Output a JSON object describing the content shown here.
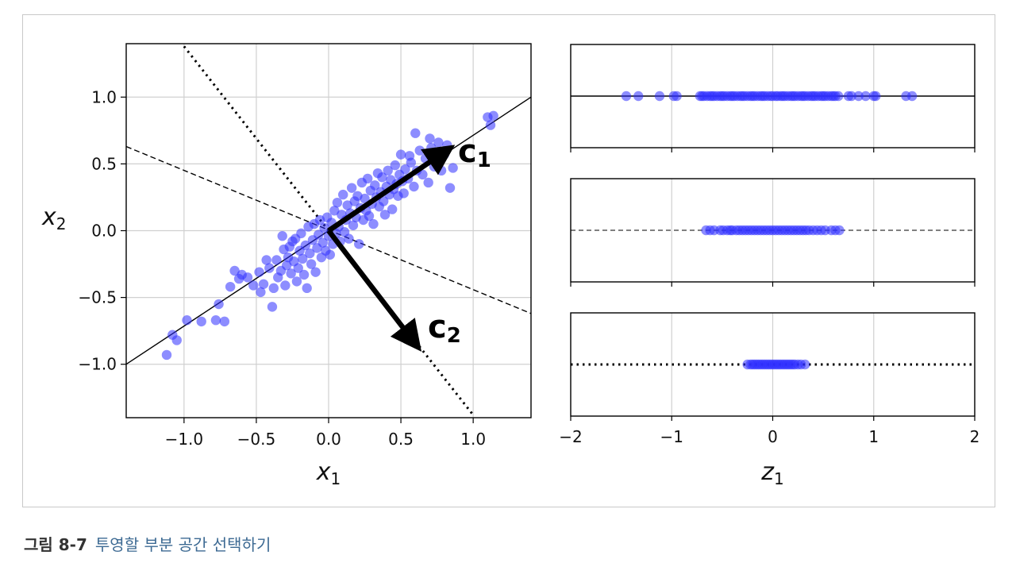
{
  "caption": {
    "number": "그림 8-7",
    "title": "투영할 부분 공간 선택하기"
  },
  "colors": {
    "points": "#2f2fff",
    "axes": "#000000",
    "grid": "#d0d0d0"
  },
  "chart_data": [
    {
      "type": "scatter",
      "xlabel": {
        "main": "x",
        "sub": "1"
      },
      "ylabel": {
        "main": "x",
        "sub": "2"
      },
      "xlim": [
        -1.4,
        1.4
      ],
      "ylim": [
        -1.4,
        1.4
      ],
      "xticks": [
        -1.0,
        -0.5,
        0.0,
        0.5,
        1.0
      ],
      "xtick_labels": [
        "−1.0",
        "−0.5",
        "0.0",
        "0.5",
        "1.0"
      ],
      "yticks": [
        -1.0,
        -0.5,
        0.0,
        0.5,
        1.0
      ],
      "ytick_labels": [
        "−1.0",
        "−0.5",
        "0.0",
        "0.5",
        "1.0"
      ],
      "grid": true,
      "lines": [
        {
          "style": "solid",
          "x": [
            -1.4,
            1.4
          ],
          "y": [
            -1.0,
            1.0
          ]
        },
        {
          "style": "dashed",
          "x": [
            -1.4,
            1.4
          ],
          "y": [
            0.63,
            -0.62
          ]
        },
        {
          "style": "dotted",
          "x": [
            -1.0,
            1.0
          ],
          "y": [
            1.38,
            -1.38
          ]
        }
      ],
      "vectors": [
        {
          "label": "c",
          "sub": "1",
          "from": [
            0,
            0
          ],
          "to": [
            0.83,
            0.61
          ]
        },
        {
          "label": "c",
          "sub": "2",
          "from": [
            0,
            0
          ],
          "to": [
            0.61,
            -0.86
          ]
        }
      ],
      "points": [
        [
          -1.12,
          -0.93
        ],
        [
          -1.08,
          -0.78
        ],
        [
          -1.05,
          -0.82
        ],
        [
          -0.98,
          -0.67
        ],
        [
          -0.88,
          -0.68
        ],
        [
          -0.78,
          -0.67
        ],
        [
          -0.76,
          -0.55
        ],
        [
          -0.72,
          -0.68
        ],
        [
          -0.68,
          -0.42
        ],
        [
          -0.65,
          -0.3
        ],
        [
          -0.62,
          -0.36
        ],
        [
          -0.6,
          -0.33
        ],
        [
          -0.56,
          -0.35
        ],
        [
          -0.52,
          -0.41
        ],
        [
          -0.48,
          -0.31
        ],
        [
          -0.47,
          -0.46
        ],
        [
          -0.45,
          -0.4
        ],
        [
          -0.43,
          -0.22
        ],
        [
          -0.41,
          -0.28
        ],
        [
          -0.39,
          -0.57
        ],
        [
          -0.38,
          -0.43
        ],
        [
          -0.36,
          -0.22
        ],
        [
          -0.35,
          -0.35
        ],
        [
          -0.33,
          -0.3
        ],
        [
          -0.32,
          -0.04
        ],
        [
          -0.31,
          -0.14
        ],
        [
          -0.3,
          -0.41
        ],
        [
          -0.29,
          -0.26
        ],
        [
          -0.28,
          -0.2
        ],
        [
          -0.27,
          -0.12
        ],
        [
          -0.26,
          -0.32
        ],
        [
          -0.25,
          -0.08
        ],
        [
          -0.24,
          -0.23
        ],
        [
          -0.23,
          -0.06
        ],
        [
          -0.22,
          -0.38
        ],
        [
          -0.21,
          -0.28
        ],
        [
          -0.2,
          -0.15
        ],
        [
          -0.19,
          -0.02
        ],
        [
          -0.18,
          -0.21
        ],
        [
          -0.17,
          -0.33
        ],
        [
          -0.16,
          -0.11
        ],
        [
          -0.15,
          -0.43
        ],
        [
          -0.14,
          0.03
        ],
        [
          -0.13,
          -0.17
        ],
        [
          -0.12,
          -0.25
        ],
        [
          -0.11,
          -0.07
        ],
        [
          -0.1,
          0.05
        ],
        [
          -0.09,
          -0.31
        ],
        [
          -0.08,
          -0.13
        ],
        [
          -0.07,
          -0.03
        ],
        [
          -0.06,
          0.08
        ],
        [
          -0.05,
          -0.2
        ],
        [
          -0.04,
          -0.09
        ],
        [
          -0.03,
          0.02
        ],
        [
          -0.02,
          -0.15
        ],
        [
          -0.01,
          0.1
        ],
        [
          0.0,
          -0.04
        ],
        [
          0.01,
          -0.18
        ],
        [
          0.02,
          0.06
        ],
        [
          0.03,
          -0.1
        ],
        [
          0.04,
          0.15
        ],
        [
          0.05,
          -0.02
        ],
        [
          0.06,
          0.21
        ],
        [
          0.07,
          0.03
        ],
        [
          0.08,
          -0.08
        ],
        [
          0.09,
          0.12
        ],
        [
          0.1,
          0.27
        ],
        [
          0.11,
          -0.01
        ],
        [
          0.12,
          0.08
        ],
        [
          0.13,
          0.19
        ],
        [
          0.14,
          -0.06
        ],
        [
          0.15,
          0.13
        ],
        [
          0.16,
          0.32
        ],
        [
          0.17,
          0.04
        ],
        [
          0.18,
          0.22
        ],
        [
          0.19,
          0.1
        ],
        [
          0.2,
          0.26
        ],
        [
          0.21,
          -0.1
        ],
        [
          0.22,
          0.17
        ],
        [
          0.23,
          0.36
        ],
        [
          0.24,
          0.08
        ],
        [
          0.25,
          0.24
        ],
        [
          0.26,
          0.15
        ],
        [
          0.27,
          0.39
        ],
        [
          0.28,
          0.11
        ],
        [
          0.29,
          0.3
        ],
        [
          0.3,
          0.2
        ],
        [
          0.31,
          0.05
        ],
        [
          0.32,
          0.34
        ],
        [
          0.33,
          0.25
        ],
        [
          0.34,
          0.43
        ],
        [
          0.35,
          0.18
        ],
        [
          0.36,
          0.29
        ],
        [
          0.37,
          0.4
        ],
        [
          0.38,
          0.22
        ],
        [
          0.39,
          0.12
        ],
        [
          0.4,
          0.33
        ],
        [
          0.41,
          0.45
        ],
        [
          0.42,
          0.27
        ],
        [
          0.43,
          0.38
        ],
        [
          0.44,
          0.16
        ],
        [
          0.45,
          0.31
        ],
        [
          0.46,
          0.49
        ],
        [
          0.47,
          0.35
        ],
        [
          0.48,
          0.26
        ],
        [
          0.49,
          0.42
        ],
        [
          0.5,
          0.57
        ],
        [
          0.51,
          0.37
        ],
        [
          0.52,
          0.28
        ],
        [
          0.53,
          0.46
        ],
        [
          0.55,
          0.39
        ],
        [
          0.57,
          0.51
        ],
        [
          0.59,
          0.33
        ],
        [
          0.61,
          0.45
        ],
        [
          0.63,
          0.6
        ],
        [
          0.65,
          0.42
        ],
        [
          0.67,
          0.54
        ],
        [
          0.69,
          0.36
        ],
        [
          0.71,
          0.62
        ],
        [
          0.73,
          0.48
        ],
        [
          0.76,
          0.66
        ],
        [
          0.78,
          0.45
        ],
        [
          0.8,
          0.57
        ],
        [
          0.82,
          0.64
        ],
        [
          0.84,
          0.32
        ],
        [
          0.86,
          0.47
        ],
        [
          0.6,
          0.73
        ],
        [
          0.56,
          0.56
        ],
        [
          0.7,
          0.69
        ],
        [
          1.1,
          0.85
        ],
        [
          1.14,
          0.86
        ],
        [
          1.12,
          0.79
        ]
      ]
    },
    {
      "type": "scatter",
      "variant": "strip",
      "line_style": "solid",
      "xlim": [
        -2,
        2
      ],
      "xticks": [
        -2,
        -1,
        0,
        1,
        2
      ],
      "grid": true,
      "z": [
        -1.45,
        -1.33,
        -1.12,
        -0.98,
        -0.95,
        -0.72,
        -0.7,
        -0.68,
        -0.65,
        -0.62,
        -0.6,
        -0.58,
        -0.55,
        -0.52,
        -0.5,
        -0.48,
        -0.45,
        -0.42,
        -0.4,
        -0.38,
        -0.35,
        -0.32,
        -0.3,
        -0.28,
        -0.25,
        -0.22,
        -0.2,
        -0.18,
        -0.15,
        -0.12,
        -0.1,
        -0.08,
        -0.05,
        -0.02,
        0.0,
        0.03,
        0.05,
        0.08,
        0.1,
        0.12,
        0.15,
        0.18,
        0.2,
        0.22,
        0.25,
        0.28,
        0.3,
        0.32,
        0.35,
        0.38,
        0.4,
        0.42,
        0.45,
        0.48,
        0.5,
        0.52,
        0.55,
        0.58,
        0.6,
        0.62,
        0.65,
        0.75,
        0.78,
        0.85,
        0.92,
        1.0,
        1.02,
        1.32,
        1.38
      ]
    },
    {
      "type": "scatter",
      "variant": "strip",
      "line_style": "dashed",
      "xlim": [
        -2,
        2
      ],
      "xticks": [
        -2,
        -1,
        0,
        1,
        2
      ],
      "grid": true,
      "z": [
        -0.66,
        -0.62,
        -0.58,
        -0.52,
        -0.49,
        -0.45,
        -0.42,
        -0.4,
        -0.36,
        -0.33,
        -0.3,
        -0.27,
        -0.24,
        -0.21,
        -0.18,
        -0.15,
        -0.12,
        -0.09,
        -0.06,
        -0.03,
        0.0,
        0.03,
        0.06,
        0.09,
        0.12,
        0.15,
        0.18,
        0.21,
        0.24,
        0.27,
        0.3,
        0.33,
        0.36,
        0.4,
        0.44,
        0.48,
        0.52,
        0.58,
        0.62,
        0.66
      ]
    },
    {
      "type": "scatter",
      "variant": "strip",
      "line_style": "dotted",
      "xlim": [
        -2,
        2
      ],
      "xticks": [
        -2,
        -1,
        0,
        1,
        2
      ],
      "xtick_labels": [
        "−2",
        "−1",
        "0",
        "1",
        "2"
      ],
      "xlabel": {
        "main": "z",
        "sub": "1"
      },
      "grid": true,
      "z": [
        -0.25,
        -0.22,
        -0.2,
        -0.18,
        -0.16,
        -0.14,
        -0.12,
        -0.1,
        -0.08,
        -0.06,
        -0.04,
        -0.02,
        0.0,
        0.02,
        0.04,
        0.06,
        0.08,
        0.1,
        0.12,
        0.14,
        0.16,
        0.18,
        0.2,
        0.22,
        0.25,
        0.28,
        0.32
      ]
    }
  ]
}
